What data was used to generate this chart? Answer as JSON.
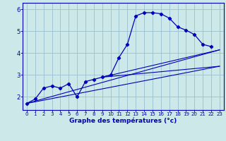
{
  "xlabel": "Graphe des températures (°c)",
  "background_color": "#cce8e8",
  "grid_color": "#99bfcf",
  "line_color": "#0000bb",
  "xlim": [
    -0.5,
    23.5
  ],
  "ylim": [
    1.4,
    6.3
  ],
  "xticks": [
    0,
    1,
    2,
    3,
    4,
    5,
    6,
    7,
    8,
    9,
    10,
    11,
    12,
    13,
    14,
    15,
    16,
    17,
    18,
    19,
    20,
    21,
    22,
    23
  ],
  "yticks": [
    2,
    3,
    4,
    5,
    6
  ],
  "main_series": [
    [
      0,
      1.7
    ],
    [
      1,
      1.9
    ],
    [
      2,
      2.4
    ],
    [
      3,
      2.5
    ],
    [
      4,
      2.4
    ],
    [
      5,
      2.6
    ],
    [
      6,
      2.0
    ],
    [
      7,
      2.7
    ],
    [
      8,
      2.8
    ],
    [
      9,
      2.9
    ],
    [
      10,
      3.0
    ],
    [
      11,
      3.8
    ],
    [
      12,
      4.4
    ],
    [
      13,
      5.7
    ],
    [
      14,
      5.85
    ],
    [
      15,
      5.85
    ],
    [
      16,
      5.8
    ],
    [
      17,
      5.6
    ],
    [
      18,
      5.2
    ],
    [
      19,
      5.05
    ],
    [
      20,
      4.85
    ],
    [
      21,
      4.4
    ],
    [
      22,
      4.3
    ]
  ],
  "trend_lines": [
    [
      [
        0,
        1.7
      ],
      [
        23,
        4.15
      ]
    ],
    [
      [
        0,
        1.7
      ],
      [
        23,
        3.4
      ]
    ],
    [
      [
        9,
        2.9
      ],
      [
        23,
        4.15
      ]
    ],
    [
      [
        9,
        2.9
      ],
      [
        23,
        3.4
      ]
    ]
  ]
}
